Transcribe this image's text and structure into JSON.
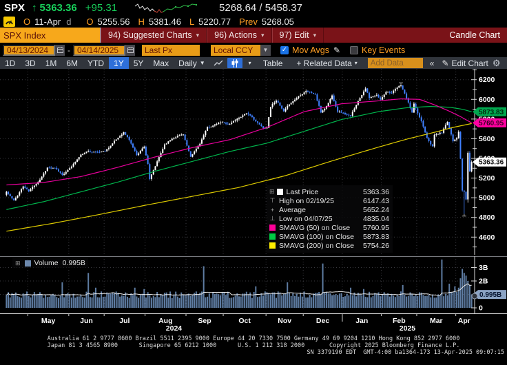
{
  "header": {
    "ticker": "SPX",
    "arrow": "↑",
    "last": "5363.36",
    "change": "+95.31",
    "range": "5268.64 / 5458.37",
    "open_label": "O",
    "date": "11-Apr",
    "freq": "d",
    "o_label": "O",
    "o": "5255.56",
    "h_label": "H",
    "h": "5381.46",
    "l_label": "L",
    "l": "5220.77",
    "prev_label": "Prev",
    "prev": "5268.05"
  },
  "menubar": {
    "security": "SPX Index",
    "items": [
      {
        "label": "94) Suggested Charts",
        "arrow": "▾"
      },
      {
        "label": "96) Actions",
        "arrow": "▾"
      },
      {
        "label": "97) Edit",
        "arrow": "▾"
      }
    ],
    "right": "Candle Chart"
  },
  "controls": {
    "date_from": "04/13/2024",
    "dash": "-",
    "date_to": "04/14/2025",
    "field": "Last Px",
    "ccy": "Local CCY",
    "mov_avgs": "Mov Avgs",
    "key_events": "Key Events"
  },
  "toolbar": {
    "ranges": [
      "1D",
      "3D",
      "1M",
      "6M",
      "YTD",
      "1Y",
      "5Y",
      "Max"
    ],
    "active_range": "1Y",
    "period": "Daily",
    "period_caret": "▼",
    "table": "Table",
    "related": "+ Related Data",
    "add_data_placeholder": "Add Data",
    "collapse": "«",
    "edit_chart": "Edit Chart"
  },
  "legend": {
    "rows": [
      {
        "marker": "square",
        "color": "#ffffff",
        "label": "Last Price",
        "value": "5363.36",
        "expander": "⊞"
      },
      {
        "marker": "high",
        "color": "#a8a8a8",
        "label": "High on 02/19/25",
        "value": "6147.43"
      },
      {
        "marker": "avg",
        "color": "#a8a8a8",
        "label": "Average",
        "value": "5652.24"
      },
      {
        "marker": "low",
        "color": "#a8a8a8",
        "label": "Low on 04/07/25",
        "value": "4835.04"
      },
      {
        "marker": "square",
        "color": "#ff0099",
        "label": "SMAVG (50)  on Close",
        "value": "5760.95"
      },
      {
        "marker": "square",
        "color": "#00cc44",
        "label": "SMAVG (100)  on Close",
        "value": "5873.83"
      },
      {
        "marker": "square",
        "color": "#ffee00",
        "label": "SMAVG (200)  on Close",
        "value": "5754.26"
      }
    ]
  },
  "volume_legend": {
    "expander": "⊞",
    "label": "Volume",
    "value": "0.995B"
  },
  "footer": {
    "line1": "Australia 61 2 9777 8600 Brazil 5511 2395 9000 Europe 44 20 7330 7500 Germany 49 69 9204 1210 Hong Kong 852 2977 6000",
    "line2": "Japan 81 3 4565 8900      Singapore 65 6212 1000      U.S. 1 212 318 2000       Copyright 2025 Bloomberg Finance L.P.",
    "line3": "SN 3379190 EDT  GMT-4:00 ba1364-173 13-Apr-2025 09:07:15"
  },
  "chart_data": {
    "type": "candlestick+volume",
    "title": "SPX Index 1Y Daily Candle Chart",
    "days": 251,
    "ylim": [
      4420,
      6310
    ],
    "price_gridlines": [
      4600,
      4800,
      5000,
      5200,
      5400,
      5600,
      5800,
      6000,
      6200
    ],
    "minor_tick_step": 100,
    "last_price": 5363.36,
    "prev_close": 5268.05,
    "average": 5652.24,
    "high": {
      "date": "02/19/25",
      "value": 6147.43,
      "day": 212
    },
    "low": {
      "date": "04/07/25",
      "value": 4835.04,
      "day": 246
    },
    "close_anchors": [
      [
        0,
        5061
      ],
      [
        4,
        4967
      ],
      [
        9,
        5116
      ],
      [
        12,
        5064
      ],
      [
        18,
        5188
      ],
      [
        22,
        5308
      ],
      [
        26,
        5297
      ],
      [
        30,
        5235
      ],
      [
        33,
        5277
      ],
      [
        40,
        5434
      ],
      [
        44,
        5473
      ],
      [
        49,
        5465
      ],
      [
        53,
        5475
      ],
      [
        58,
        5572
      ],
      [
        63,
        5667
      ],
      [
        66,
        5588
      ],
      [
        70,
        5436
      ],
      [
        74,
        5522
      ],
      [
        76,
        5346
      ],
      [
        77,
        5186
      ],
      [
        80,
        5319
      ],
      [
        85,
        5543
      ],
      [
        90,
        5616
      ],
      [
        95,
        5648
      ],
      [
        99,
        5408
      ],
      [
        104,
        5554
      ],
      [
        108,
        5713
      ],
      [
        115,
        5762
      ],
      [
        120,
        5751
      ],
      [
        125,
        5815
      ],
      [
        129,
        5864
      ],
      [
        133,
        5797
      ],
      [
        138,
        5705
      ],
      [
        140,
        5713
      ],
      [
        142,
        5929
      ],
      [
        145,
        5995
      ],
      [
        149,
        5871
      ],
      [
        152,
        5949
      ],
      [
        157,
        6032
      ],
      [
        161,
        6090
      ],
      [
        166,
        6050
      ],
      [
        169,
        5867
      ],
      [
        172,
        5931
      ],
      [
        175,
        6038
      ],
      [
        178,
        5882
      ],
      [
        180,
        5869
      ],
      [
        185,
        5827
      ],
      [
        188,
        5950
      ],
      [
        193,
        6119
      ],
      [
        195,
        6012
      ],
      [
        199,
        6041
      ],
      [
        201,
        5994
      ],
      [
        204,
        6083
      ],
      [
        207,
        6068
      ],
      [
        210,
        6115
      ],
      [
        212,
        6144
      ],
      [
        215,
        6013
      ],
      [
        218,
        5862
      ],
      [
        219,
        5955
      ],
      [
        221,
        5850
      ],
      [
        223,
        5778
      ],
      [
        226,
        5615
      ],
      [
        229,
        5521
      ],
      [
        230,
        5639
      ],
      [
        234,
        5663
      ],
      [
        237,
        5777
      ],
      [
        240,
        5581
      ],
      [
        242,
        5612
      ],
      [
        243,
        5671
      ],
      [
        244,
        5396
      ],
      [
        245,
        5074
      ],
      [
        246,
        5062
      ],
      [
        247,
        4983
      ],
      [
        248,
        5457
      ],
      [
        249,
        5268.05
      ],
      [
        250,
        5363.36
      ]
    ],
    "ma50": {
      "name": "SMAVG (50) on Close",
      "color": "#e8009c",
      "last": 5760.95,
      "anchors": [
        [
          0,
          5130
        ],
        [
          20,
          5155
        ],
        [
          40,
          5215
        ],
        [
          60,
          5310
        ],
        [
          80,
          5415
        ],
        [
          100,
          5510
        ],
        [
          120,
          5590
        ],
        [
          140,
          5715
        ],
        [
          160,
          5875
        ],
        [
          180,
          5955
        ],
        [
          200,
          5985
        ],
        [
          212,
          6005
        ],
        [
          222,
          6000
        ],
        [
          230,
          5945
        ],
        [
          238,
          5880
        ],
        [
          244,
          5825
        ],
        [
          250,
          5760.95
        ]
      ]
    },
    "ma100": {
      "name": "SMAVG (100) on Close",
      "color": "#00b44c",
      "last": 5873.83,
      "anchors": [
        [
          0,
          4880
        ],
        [
          20,
          4960
        ],
        [
          40,
          5060
        ],
        [
          60,
          5160
        ],
        [
          80,
          5270
        ],
        [
          100,
          5370
        ],
        [
          120,
          5470
        ],
        [
          140,
          5555
        ],
        [
          160,
          5675
        ],
        [
          180,
          5795
        ],
        [
          200,
          5875
        ],
        [
          215,
          5915
        ],
        [
          228,
          5928
        ],
        [
          238,
          5920
        ],
        [
          245,
          5900
        ],
        [
          250,
          5873.83
        ]
      ]
    },
    "ma200": {
      "name": "SMAVG (200) on Close",
      "color": "#ddca00",
      "last": 5754.26,
      "anchors": [
        [
          0,
          4660
        ],
        [
          25,
          4740
        ],
        [
          50,
          4830
        ],
        [
          75,
          4925
        ],
        [
          100,
          5015
        ],
        [
          125,
          5105
        ],
        [
          150,
          5225
        ],
        [
          175,
          5375
        ],
        [
          200,
          5515
        ],
        [
          215,
          5595
        ],
        [
          230,
          5665
        ],
        [
          240,
          5715
        ],
        [
          250,
          5754.26
        ]
      ]
    },
    "months": [
      {
        "label": "May",
        "start": 12
      },
      {
        "label": "Jun",
        "start": 34
      },
      {
        "label": "Jul",
        "start": 53
      },
      {
        "label": "Aug",
        "start": 75
      },
      {
        "label": "Sep",
        "start": 97
      },
      {
        "label": "Oct",
        "start": 117
      },
      {
        "label": "Nov",
        "start": 140
      },
      {
        "label": "Dec",
        "start": 160
      },
      {
        "label": "Jan",
        "start": 181
      },
      {
        "label": "Feb",
        "start": 202
      },
      {
        "label": "Mar",
        "start": 221
      },
      {
        "label": "Apr",
        "start": 242
      }
    ],
    "years": [
      {
        "label": "2024",
        "from": 0,
        "to": 181
      },
      {
        "label": "2025",
        "from": 181,
        "to": 251
      }
    ],
    "volume": {
      "ylim_b": [
        0,
        4.3
      ],
      "ticks": [
        [
          3,
          "3B"
        ],
        [
          2,
          "2B"
        ],
        [
          0,
          "0"
        ]
      ],
      "last_label": "0.995B",
      "last_value": 0.995,
      "base_b": 0.85,
      "spikes": [
        [
          30,
          1.9
        ],
        [
          44,
          2.6
        ],
        [
          48,
          1.5
        ],
        [
          69,
          1.5
        ],
        [
          74,
          1.4
        ],
        [
          106,
          3.1
        ],
        [
          134,
          1.6
        ],
        [
          151,
          1.9
        ],
        [
          170,
          3.3
        ],
        [
          185,
          1.5
        ],
        [
          192,
          1.4
        ],
        [
          213,
          1.7
        ],
        [
          234,
          3.6
        ],
        [
          238,
          1.8
        ],
        [
          241,
          1.6
        ],
        [
          243,
          1.5
        ],
        [
          244,
          2.2
        ],
        [
          245,
          2.9
        ],
        [
          246,
          2.6
        ],
        [
          247,
          2.4
        ],
        [
          248,
          2.0
        ],
        [
          249,
          1.7
        ],
        [
          250,
          0.995
        ]
      ]
    },
    "badges": {
      "price": [
        {
          "value": 5873.83,
          "label": "5873.83",
          "bg": "#00a64e",
          "fg": "#00260d"
        },
        {
          "value": 5760.95,
          "label": "5760.95",
          "bg": "#ff00a0",
          "fg": "#33001f"
        },
        {
          "value": 5363.36,
          "label": "5363.36",
          "bg": "#ffffff",
          "fg": "#111111"
        }
      ],
      "volume": {
        "value": 0.995,
        "label": "0.995B",
        "bg": "#8ba3c4",
        "fg": "#04122e"
      }
    },
    "colors": {
      "up": "#ffffff",
      "down": "#4080ff",
      "volume_bar": "#5e7ca2",
      "grid": "#3a3a40",
      "axis_line": "#d8d8d8",
      "label": "#ffffff",
      "vol_ma": "#e8e8e8"
    }
  }
}
